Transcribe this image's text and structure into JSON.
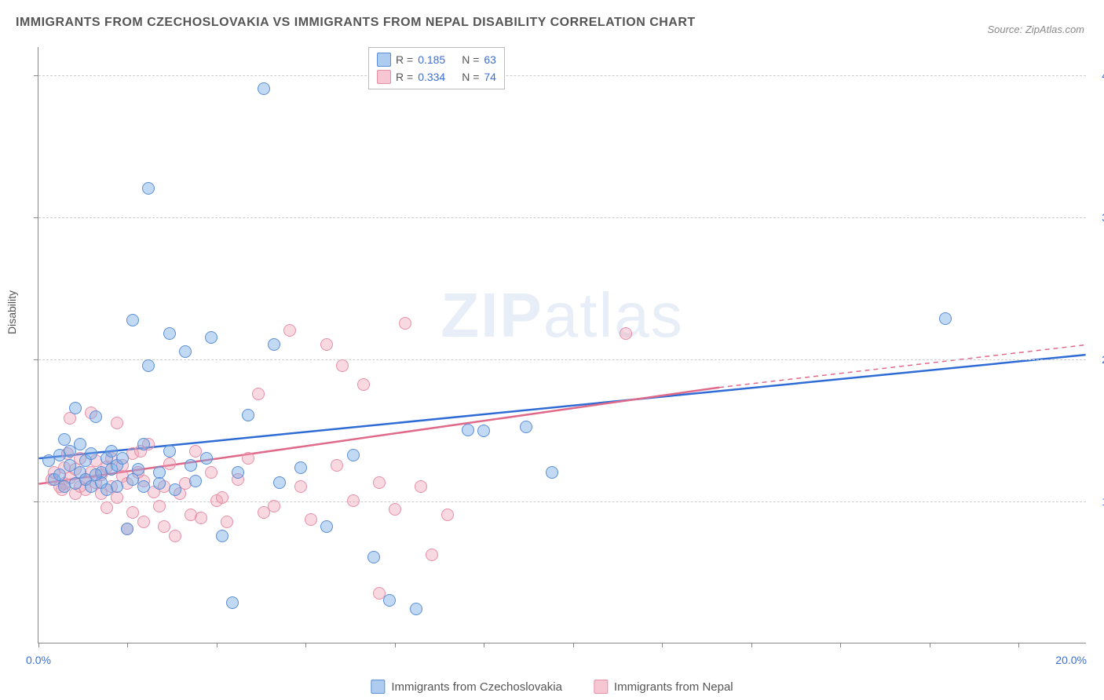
{
  "title": "IMMIGRANTS FROM CZECHOSLOVAKIA VS IMMIGRANTS FROM NEPAL DISABILITY CORRELATION CHART",
  "source": "Source: ZipAtlas.com",
  "y_axis_label": "Disability",
  "watermark_bold": "ZIP",
  "watermark_rest": "atlas",
  "chart": {
    "type": "scatter",
    "xlim": [
      0,
      20
    ],
    "ylim": [
      0,
      42
    ],
    "xtick_positions_pct": [
      0,
      8.5,
      17,
      25.5,
      34,
      42.5,
      51,
      59.5,
      68,
      76.5,
      85,
      93.5
    ],
    "xtick_labels": {
      "first": "0.0%",
      "last": "20.0%"
    },
    "yticks": [
      {
        "value": 10,
        "label": "10.0%"
      },
      {
        "value": 20,
        "label": "20.0%"
      },
      {
        "value": 30,
        "label": "30.0%"
      },
      {
        "value": 40,
        "label": "40.0%"
      }
    ],
    "background_color": "#ffffff",
    "grid_color": "#cccccc",
    "marker_size": 16,
    "colors": {
      "blue_fill": "rgba(120,170,230,0.45)",
      "blue_stroke": "#5a8ed6",
      "pink_fill": "rgba(240,160,180,0.4)",
      "pink_stroke": "#e78fa6",
      "axis_text": "#3b6fd4",
      "trend_blue": "#2e6bd4",
      "trend_pink": "#e06a8a"
    },
    "legend_top": [
      {
        "swatch": "blue",
        "r_label": "R =",
        "r": "0.185",
        "n_label": "N =",
        "n": "63"
      },
      {
        "swatch": "pink",
        "r_label": "R =",
        "r": "0.334",
        "n_label": "N =",
        "n": "74"
      }
    ],
    "legend_bottom": [
      {
        "swatch": "blue",
        "label": "Immigrants from Czechoslovakia"
      },
      {
        "swatch": "pink",
        "label": "Immigrants from Nepal"
      }
    ],
    "trend_lines": {
      "blue": {
        "x1": 0,
        "y1": 13.0,
        "x2": 20,
        "y2": 20.3,
        "dash_from_x": 20
      },
      "pink": {
        "x1": 0,
        "y1": 11.2,
        "x2": 13,
        "y2": 18.0,
        "dash_to_x": 20,
        "dash_to_y": 21.0
      }
    },
    "series_blue": [
      [
        0.2,
        12.8
      ],
      [
        0.3,
        11.5
      ],
      [
        0.4,
        13.2
      ],
      [
        0.5,
        11.0
      ],
      [
        0.5,
        14.3
      ],
      [
        0.6,
        12.5
      ],
      [
        0.7,
        11.2
      ],
      [
        0.7,
        16.5
      ],
      [
        0.8,
        12.0
      ],
      [
        0.8,
        14.0
      ],
      [
        0.9,
        11.5
      ],
      [
        0.9,
        12.8
      ],
      [
        1.0,
        13.3
      ],
      [
        1.0,
        11.0
      ],
      [
        1.1,
        15.9
      ],
      [
        1.2,
        12.0
      ],
      [
        1.2,
        11.3
      ],
      [
        1.3,
        13.0
      ],
      [
        1.3,
        10.8
      ],
      [
        1.4,
        12.2
      ],
      [
        1.5,
        12.5
      ],
      [
        1.5,
        11.0
      ],
      [
        1.6,
        13.0
      ],
      [
        1.7,
        8.0
      ],
      [
        1.8,
        11.5
      ],
      [
        1.8,
        22.7
      ],
      [
        1.9,
        12.2
      ],
      [
        2.0,
        11.0
      ],
      [
        2.0,
        14.0
      ],
      [
        2.1,
        19.5
      ],
      [
        2.1,
        32.0
      ],
      [
        2.3,
        12.0
      ],
      [
        2.3,
        11.2
      ],
      [
        2.5,
        21.8
      ],
      [
        2.5,
        13.5
      ],
      [
        2.6,
        10.8
      ],
      [
        2.8,
        20.5
      ],
      [
        2.9,
        12.5
      ],
      [
        3.0,
        11.4
      ],
      [
        3.2,
        13.0
      ],
      [
        3.3,
        21.5
      ],
      [
        3.5,
        7.5
      ],
      [
        3.7,
        2.8
      ],
      [
        3.8,
        12.0
      ],
      [
        4.0,
        16.0
      ],
      [
        4.3,
        39.0
      ],
      [
        4.5,
        21.0
      ],
      [
        4.6,
        11.3
      ],
      [
        5.0,
        12.3
      ],
      [
        5.5,
        8.2
      ],
      [
        6.0,
        13.2
      ],
      [
        6.4,
        6.0
      ],
      [
        6.7,
        3.0
      ],
      [
        7.2,
        2.4
      ],
      [
        8.2,
        15.0
      ],
      [
        8.5,
        14.9
      ],
      [
        9.3,
        15.2
      ],
      [
        9.8,
        12.0
      ],
      [
        17.3,
        22.8
      ],
      [
        0.4,
        11.8
      ],
      [
        0.6,
        13.5
      ],
      [
        1.1,
        11.8
      ],
      [
        1.4,
        13.5
      ]
    ],
    "series_pink": [
      [
        0.25,
        11.5
      ],
      [
        0.3,
        12.0
      ],
      [
        0.4,
        11.0
      ],
      [
        0.5,
        12.3
      ],
      [
        0.5,
        11.2
      ],
      [
        0.6,
        11.6
      ],
      [
        0.6,
        15.8
      ],
      [
        0.7,
        10.5
      ],
      [
        0.7,
        12.2
      ],
      [
        0.8,
        11.0
      ],
      [
        0.8,
        13.0
      ],
      [
        0.9,
        11.5
      ],
      [
        0.9,
        10.8
      ],
      [
        1.0,
        12.0
      ],
      [
        1.0,
        16.2
      ],
      [
        1.1,
        11.3
      ],
      [
        1.1,
        12.8
      ],
      [
        1.2,
        10.5
      ],
      [
        1.2,
        11.8
      ],
      [
        1.3,
        12.4
      ],
      [
        1.3,
        9.5
      ],
      [
        1.4,
        13.0
      ],
      [
        1.4,
        11.0
      ],
      [
        1.5,
        15.5
      ],
      [
        1.5,
        10.2
      ],
      [
        1.6,
        11.7
      ],
      [
        1.6,
        12.5
      ],
      [
        1.7,
        8.0
      ],
      [
        1.7,
        11.2
      ],
      [
        1.8,
        13.3
      ],
      [
        1.8,
        9.2
      ],
      [
        1.9,
        12.0
      ],
      [
        2.0,
        11.4
      ],
      [
        2.0,
        8.5
      ],
      [
        2.1,
        14.0
      ],
      [
        2.2,
        10.6
      ],
      [
        2.3,
        9.6
      ],
      [
        2.4,
        11.0
      ],
      [
        2.4,
        8.2
      ],
      [
        2.5,
        12.6
      ],
      [
        2.6,
        7.5
      ],
      [
        2.8,
        11.2
      ],
      [
        2.9,
        9.0
      ],
      [
        3.0,
        13.5
      ],
      [
        3.1,
        8.8
      ],
      [
        3.3,
        12.0
      ],
      [
        3.4,
        10.0
      ],
      [
        3.6,
        8.5
      ],
      [
        3.8,
        11.5
      ],
      [
        4.0,
        13.0
      ],
      [
        4.2,
        17.5
      ],
      [
        4.5,
        9.6
      ],
      [
        4.8,
        22.0
      ],
      [
        5.0,
        11.0
      ],
      [
        5.2,
        8.7
      ],
      [
        5.5,
        21.0
      ],
      [
        5.7,
        12.5
      ],
      [
        5.8,
        19.5
      ],
      [
        6.0,
        10.0
      ],
      [
        6.2,
        18.2
      ],
      [
        6.5,
        11.3
      ],
      [
        6.5,
        3.5
      ],
      [
        6.8,
        9.4
      ],
      [
        7.0,
        22.5
      ],
      [
        7.3,
        11.0
      ],
      [
        7.5,
        6.2
      ],
      [
        7.8,
        9.0
      ],
      [
        11.2,
        21.8
      ],
      [
        4.3,
        9.2
      ],
      [
        3.5,
        10.2
      ],
      [
        2.7,
        10.5
      ],
      [
        1.95,
        13.5
      ],
      [
        0.45,
        10.8
      ],
      [
        0.55,
        13.3
      ]
    ]
  }
}
